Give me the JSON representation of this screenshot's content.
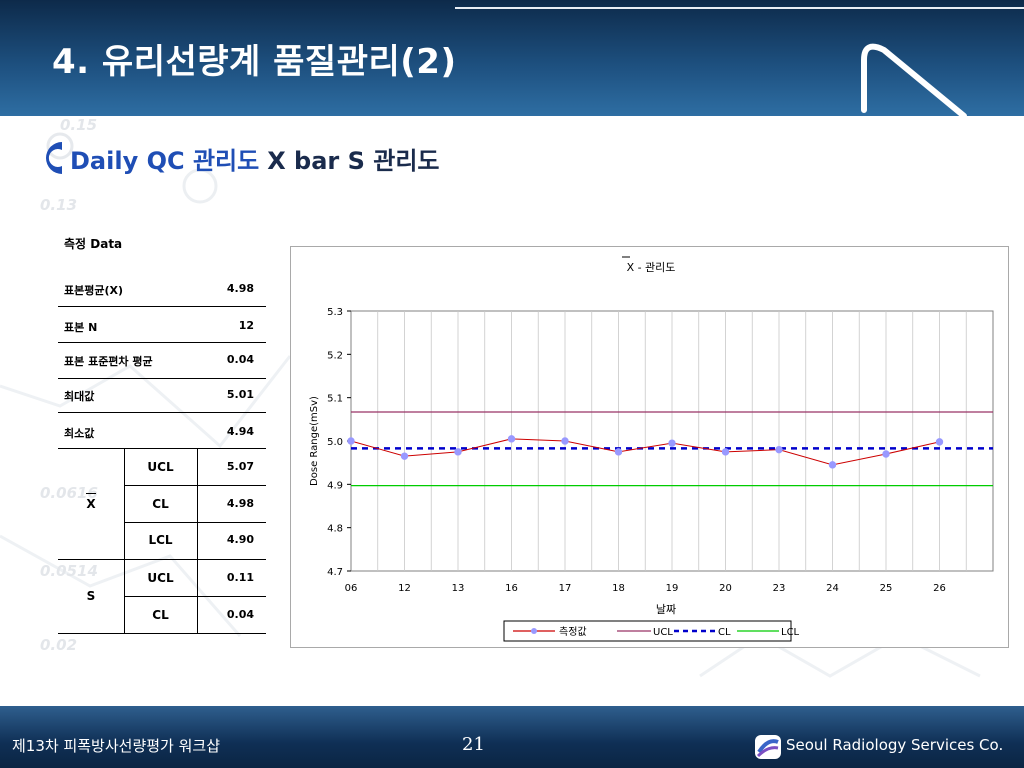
{
  "slide": {
    "title": "4. 유리선량계 품질관리(2)",
    "subtitle_part1": "Daily QC 관리도",
    "subtitle_part2": "X bar S 관리도"
  },
  "background_numbers": [
    "0.15",
    "0.13",
    "0.0616",
    "0.0514",
    "0.02"
  ],
  "table": {
    "heading": "측정 Data",
    "rows": [
      {
        "label": "표본평균(X)",
        "value": "4.98"
      },
      {
        "label": "표본 N",
        "value": "12"
      },
      {
        "label": "표본 표준편차 평균",
        "value": "0.04"
      },
      {
        "label": "최대값",
        "value": "5.01"
      },
      {
        "label": "최소값",
        "value": "4.94"
      }
    ],
    "xbar": {
      "group": "X",
      "rows": [
        {
          "limit": "UCL",
          "value": "5.07"
        },
        {
          "limit": "CL",
          "value": "4.98"
        },
        {
          "limit": "LCL",
          "value": "4.90"
        }
      ]
    },
    "s": {
      "group": "S",
      "rows": [
        {
          "limit": "UCL",
          "value": "0.11"
        },
        {
          "limit": "CL",
          "value": "0.04"
        }
      ]
    }
  },
  "chart_data": {
    "type": "line",
    "title": "X - 관리도",
    "xlabel": "날짜",
    "ylabel": "Dose Range(mSv)",
    "categories": [
      "06",
      "12",
      "13",
      "16",
      "17",
      "18",
      "19",
      "20",
      "23",
      "24",
      "25",
      "26"
    ],
    "ylim": [
      4.7,
      5.3
    ],
    "yticks": [
      "5.3",
      "5.2",
      "5.1",
      "5.0",
      "4.9",
      "4.8",
      "4.7"
    ],
    "grid": "vertical",
    "legend_position": "bottom",
    "series": [
      {
        "name": "측정값",
        "values": [
          5.0,
          4.965,
          4.975,
          5.005,
          5.0,
          4.975,
          4.995,
          4.975,
          4.98,
          4.945,
          4.97,
          4.998
        ],
        "color": "#cc0000",
        "marker_color": "#9999ff"
      },
      {
        "name": "UCL",
        "constant": 5.067,
        "color": "#993366"
      },
      {
        "name": "CL",
        "constant": 4.983,
        "color": "#0000cc",
        "dashed": true
      },
      {
        "name": "LCL",
        "constant": 4.897,
        "color": "#00cc00"
      }
    ]
  },
  "footer": {
    "left": "제13차 피폭방사선량평가 워크샵",
    "page": "21",
    "company": "Seoul Radiology Services Co."
  }
}
